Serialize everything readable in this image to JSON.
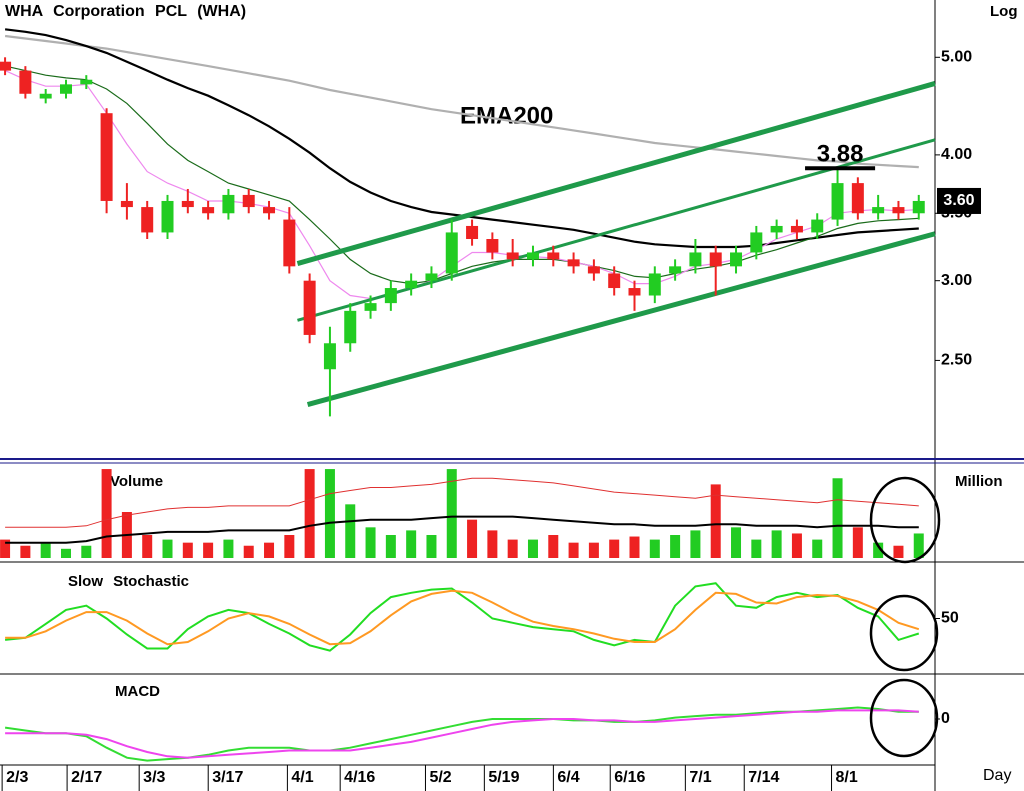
{
  "chart_data": [
    {
      "type": "candlestick",
      "title": "WHA Corporation PCL (WHA)",
      "scale_label": "Log",
      "log_scale": true,
      "ylim": [
        2.0,
        5.7
      ],
      "yticks": [
        {
          "value": 2.5,
          "label": "2.50"
        },
        {
          "value": 3,
          "label": "3.00"
        },
        {
          "value": 3.5,
          "label": "3.50"
        },
        {
          "value": 4,
          "label": "4.00"
        },
        {
          "value": 5,
          "label": "5.00"
        }
      ],
      "up_color": "#22cc22",
      "down_color": "#ee2222",
      "open": [
        4.95,
        4.85,
        4.55,
        4.6,
        4.7,
        4.4,
        3.6,
        3.55,
        3.35,
        3.6,
        3.55,
        3.5,
        3.65,
        3.55,
        3.45,
        3.0,
        2.45,
        2.6,
        2.8,
        2.85,
        2.95,
        3.0,
        3.05,
        3.4,
        3.3,
        3.2,
        3.15,
        3.2,
        3.15,
        3.1,
        3.05,
        2.95,
        2.9,
        3.05,
        3.1,
        3.2,
        3.1,
        3.2,
        3.35,
        3.4,
        3.35,
        3.45,
        3.75,
        3.5,
        3.55,
        3.5
      ],
      "high": [
        5.0,
        4.9,
        4.65,
        4.75,
        4.8,
        4.45,
        3.75,
        3.6,
        3.65,
        3.7,
        3.6,
        3.7,
        3.7,
        3.6,
        3.55,
        3.05,
        2.7,
        2.85,
        2.9,
        3.0,
        3.05,
        3.1,
        3.45,
        3.45,
        3.35,
        3.3,
        3.25,
        3.25,
        3.2,
        3.15,
        3.1,
        3.0,
        3.1,
        3.15,
        3.3,
        3.25,
        3.25,
        3.4,
        3.45,
        3.45,
        3.5,
        3.88,
        3.8,
        3.65,
        3.6,
        3.65
      ],
      "low": [
        4.8,
        4.55,
        4.5,
        4.55,
        4.65,
        3.5,
        3.45,
        3.3,
        3.3,
        3.5,
        3.45,
        3.45,
        3.5,
        3.45,
        3.05,
        2.6,
        2.2,
        2.55,
        2.75,
        2.8,
        2.9,
        2.95,
        3.0,
        3.25,
        3.15,
        3.1,
        3.1,
        3.1,
        3.05,
        3.0,
        2.9,
        2.8,
        2.85,
        3.0,
        3.05,
        2.9,
        3.05,
        3.15,
        3.3,
        3.3,
        3.3,
        3.4,
        3.45,
        3.45,
        3.45,
        3.45
      ],
      "close": [
        4.85,
        4.6,
        4.6,
        4.7,
        4.75,
        3.6,
        3.55,
        3.35,
        3.6,
        3.55,
        3.5,
        3.65,
        3.55,
        3.5,
        3.1,
        2.65,
        2.6,
        2.8,
        2.85,
        2.95,
        3.0,
        3.05,
        3.35,
        3.3,
        3.2,
        3.15,
        3.2,
        3.15,
        3.1,
        3.05,
        2.95,
        2.9,
        3.05,
        3.1,
        3.2,
        3.1,
        3.2,
        3.35,
        3.4,
        3.35,
        3.45,
        3.75,
        3.5,
        3.55,
        3.5,
        3.6
      ],
      "overlays": [
        {
          "color": "#b0b0b0",
          "values": [
            5.25,
            5.22,
            5.19,
            5.16,
            5.13,
            5.1,
            5.06,
            5.02,
            4.98,
            4.94,
            4.9,
            4.86,
            4.82,
            4.78,
            4.74,
            4.69,
            4.64,
            4.6,
            4.56,
            4.52,
            4.48,
            4.44,
            4.41,
            4.38,
            4.35,
            4.32,
            4.29,
            4.26,
            4.23,
            4.2,
            4.17,
            4.14,
            4.11,
            4.09,
            4.07,
            4.05,
            4.03,
            4.01,
            3.99,
            3.97,
            3.95,
            3.94,
            3.92,
            3.91,
            3.9,
            3.89
          ]
        },
        {
          "color": "#000000",
          "values": [
            5.33,
            5.3,
            5.26,
            5.2,
            5.13,
            5.05,
            4.95,
            4.85,
            4.75,
            4.66,
            4.58,
            4.48,
            4.38,
            4.27,
            4.15,
            4.02,
            3.88,
            3.76,
            3.67,
            3.6,
            3.55,
            3.51,
            3.49,
            3.47,
            3.45,
            3.43,
            3.41,
            3.39,
            3.37,
            3.34,
            3.31,
            3.28,
            3.26,
            3.25,
            3.24,
            3.24,
            3.24,
            3.25,
            3.27,
            3.29,
            3.31,
            3.33,
            3.35,
            3.36,
            3.37,
            3.38
          ]
        },
        {
          "color": "#1a6b1a",
          "values": [
            4.9,
            4.85,
            4.8,
            4.77,
            4.75,
            4.65,
            4.5,
            4.3,
            4.1,
            3.95,
            3.85,
            3.75,
            3.7,
            3.65,
            3.6,
            3.45,
            3.3,
            3.15,
            3.05,
            3.0,
            2.98,
            3.0,
            3.05,
            3.1,
            3.13,
            3.15,
            3.15,
            3.15,
            3.13,
            3.1,
            3.07,
            3.03,
            3.02,
            3.05,
            3.08,
            3.1,
            3.13,
            3.18,
            3.22,
            3.27,
            3.32,
            3.38,
            3.42,
            3.44,
            3.45,
            3.46
          ]
        },
        {
          "color": "#ee88ee",
          "values": [
            4.85,
            4.75,
            4.68,
            4.68,
            4.7,
            4.4,
            4.1,
            3.85,
            3.75,
            3.68,
            3.6,
            3.6,
            3.58,
            3.55,
            3.5,
            3.25,
            3.0,
            2.9,
            2.88,
            2.9,
            2.95,
            3.0,
            3.1,
            3.2,
            3.2,
            3.18,
            3.17,
            3.16,
            3.13,
            3.1,
            3.05,
            2.98,
            2.98,
            3.03,
            3.1,
            3.12,
            3.15,
            3.22,
            3.3,
            3.35,
            3.4,
            3.5,
            3.52,
            3.53,
            3.52,
            3.53
          ]
        }
      ],
      "overlay_label": "EMA200",
      "trendlines": [
        {
          "color": "#1f9a4a",
          "thick": true,
          "x": [
            14.9,
            45.8
          ],
          "y": [
            2.26,
            3.34
          ]
        },
        {
          "color": "#1f9a4a",
          "thick": true,
          "x": [
            14.4,
            45.8
          ],
          "y": [
            3.12,
            4.71
          ]
        },
        {
          "color": "#1f9a4a",
          "thick": false,
          "x": [
            14.4,
            45.8
          ],
          "y": [
            2.74,
            4.14
          ]
        }
      ],
      "level": {
        "label": "3.88",
        "value": 3.88,
        "x": [
          39.4,
          42.85
        ]
      },
      "last_price": {
        "value": 3.6,
        "label": "3.60"
      }
    },
    {
      "type": "bar",
      "title": "Volume",
      "y_axis_label": "Million",
      "ylim": [
        0,
        60
      ],
      "values": [
        12,
        8,
        10,
        6,
        8,
        58,
        30,
        15,
        12,
        10,
        10,
        12,
        8,
        10,
        15,
        58,
        58,
        35,
        20,
        15,
        18,
        15,
        58,
        25,
        18,
        12,
        12,
        15,
        10,
        10,
        12,
        14,
        12,
        15,
        18,
        48,
        20,
        12,
        18,
        16,
        12,
        52,
        20,
        10,
        8,
        16
      ],
      "averages": [
        {
          "color": "#e03030",
          "values": [
            20,
            20,
            20,
            20,
            21,
            25,
            28,
            30,
            32,
            33,
            33,
            34,
            34,
            34,
            34,
            38,
            42,
            44,
            46,
            46,
            47,
            48,
            50,
            52,
            52,
            51,
            50,
            49,
            47,
            45,
            43,
            42,
            41,
            40,
            39,
            41,
            40,
            39,
            38,
            37,
            36,
            38,
            37,
            36,
            35,
            34
          ]
        },
        {
          "color": "#000000",
          "values": [
            10,
            10,
            10,
            10,
            11,
            14,
            15,
            16,
            17,
            17,
            17,
            18,
            18,
            18,
            18,
            21,
            23,
            24,
            25,
            25,
            25,
            26,
            27,
            27,
            27,
            27,
            26,
            25,
            24,
            23,
            22,
            22,
            21,
            21,
            21,
            22,
            22,
            21,
            21,
            21,
            20,
            21,
            21,
            21,
            20,
            20
          ]
        }
      ]
    },
    {
      "type": "line",
      "title": "Slow Stochastic",
      "ylim": [
        0,
        100
      ],
      "yticks": [
        50
      ],
      "series": [
        {
          "color": "#22dd22",
          "values": [
            30,
            32,
            45,
            58,
            62,
            50,
            35,
            22,
            22,
            40,
            52,
            58,
            55,
            45,
            36,
            25,
            20,
            35,
            55,
            70,
            74,
            77,
            78,
            65,
            50,
            46,
            42,
            40,
            38,
            30,
            25,
            30,
            28,
            62,
            80,
            83,
            62,
            60,
            70,
            74,
            70,
            72,
            60,
            52,
            30,
            36
          ]
        },
        {
          "color": "#ff9922",
          "values": [
            32,
            32,
            38,
            48,
            56,
            56,
            48,
            36,
            26,
            28,
            38,
            50,
            55,
            52,
            45,
            35,
            26,
            27,
            38,
            53,
            66,
            73,
            76,
            74,
            65,
            55,
            47,
            43,
            40,
            36,
            31,
            28,
            28,
            40,
            58,
            74,
            73,
            65,
            64,
            70,
            72,
            71,
            66,
            58,
            46,
            40
          ]
        }
      ]
    },
    {
      "type": "line",
      "title": "MACD",
      "ylim": [
        -0.3,
        0.3
      ],
      "yticks": [
        0
      ],
      "x_axis_label": "Day",
      "xlim": [
        -0.25,
        45.8
      ],
      "xticks": [
        {
          "value": 0.15,
          "label": "2/3"
        },
        {
          "value": 3.35,
          "label": "2/17"
        },
        {
          "value": 6.9,
          "label": "3/3"
        },
        {
          "value": 10.3,
          "label": "3/17"
        },
        {
          "value": 14.2,
          "label": "4/1"
        },
        {
          "value": 16.8,
          "label": "4/16"
        },
        {
          "value": 21,
          "label": "5/2"
        },
        {
          "value": 23.9,
          "label": "5/19"
        },
        {
          "value": 27.3,
          "label": "6/4"
        },
        {
          "value": 30.1,
          "label": "6/16"
        },
        {
          "value": 33.8,
          "label": "7/1"
        },
        {
          "value": 36.7,
          "label": "7/14"
        },
        {
          "value": 41,
          "label": "8/1"
        }
      ],
      "series": [
        {
          "color": "#33dd33",
          "values": [
            -0.06,
            -0.08,
            -0.1,
            -0.1,
            -0.12,
            -0.2,
            -0.27,
            -0.29,
            -0.28,
            -0.27,
            -0.25,
            -0.22,
            -0.2,
            -0.2,
            -0.2,
            -0.22,
            -0.22,
            -0.2,
            -0.17,
            -0.14,
            -0.11,
            -0.08,
            -0.05,
            -0.02,
            0.0,
            0.0,
            0.0,
            0.0,
            -0.01,
            -0.01,
            -0.02,
            -0.02,
            -0.01,
            0.01,
            0.02,
            0.03,
            0.03,
            0.04,
            0.05,
            0.05,
            0.06,
            0.07,
            0.08,
            0.07,
            0.05,
            0.05
          ]
        },
        {
          "color": "#ee44ee",
          "values": [
            -0.1,
            -0.1,
            -0.1,
            -0.1,
            -0.11,
            -0.14,
            -0.19,
            -0.23,
            -0.26,
            -0.27,
            -0.26,
            -0.25,
            -0.24,
            -0.23,
            -0.22,
            -0.22,
            -0.22,
            -0.22,
            -0.2,
            -0.18,
            -0.16,
            -0.13,
            -0.1,
            -0.07,
            -0.04,
            -0.02,
            -0.01,
            0.0,
            0.0,
            -0.01,
            -0.01,
            -0.02,
            -0.02,
            -0.01,
            0.0,
            0.01,
            0.02,
            0.03,
            0.04,
            0.05,
            0.05,
            0.06,
            0.06,
            0.06,
            0.06,
            0.05
          ]
        }
      ]
    }
  ]
}
